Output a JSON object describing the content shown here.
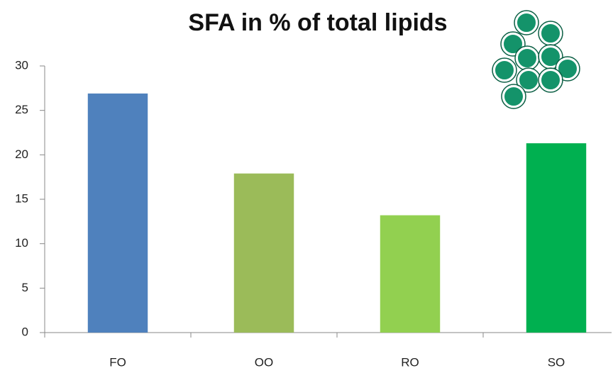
{
  "chart_data": {
    "type": "bar",
    "title": "SFA in % of total lipids",
    "categories": [
      "FO",
      "OO",
      "RO",
      "SO"
    ],
    "values": [
      26.9,
      17.9,
      13.2,
      21.3
    ],
    "colors": [
      "#4f81bd",
      "#9bbb59",
      "#92d050",
      "#00b050"
    ],
    "ylim": [
      0,
      30
    ],
    "yticks": [
      0,
      5,
      10,
      15,
      20,
      25,
      30
    ],
    "grid": false
  }
}
